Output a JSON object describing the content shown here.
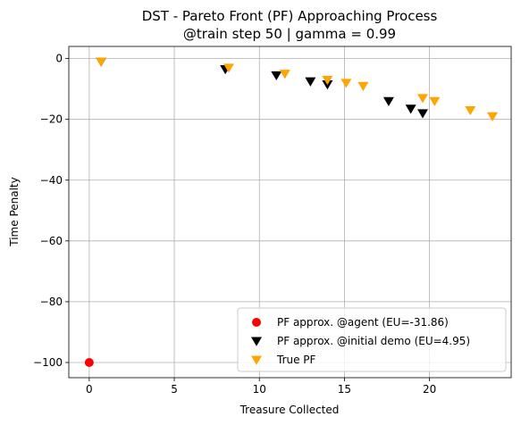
{
  "chart_data": {
    "type": "scatter",
    "title_line1": "DST - Pareto Front (PF) Approaching Process",
    "title_line2": "@train step 50 | gamma = 0.99",
    "xlabel": "Treasure Collected",
    "ylabel": "Time Penalty",
    "xlim": [
      -1.2,
      24.8
    ],
    "ylim": [
      -105,
      4
    ],
    "xticks": [
      0,
      5,
      10,
      15,
      20
    ],
    "yticks": [
      0,
      -20,
      -40,
      -60,
      -80,
      -100
    ],
    "xtick_labels": [
      "0",
      "5",
      "10",
      "15",
      "20"
    ],
    "ytick_labels": [
      "0",
      "−20",
      "−40",
      "−60",
      "−80",
      "−100"
    ],
    "grid": true,
    "legend_position": "lower-right",
    "series": [
      {
        "name": "PF approx. @agent (EU=-31.86)",
        "marker": "circle",
        "color": "#ff0000",
        "points": [
          [
            0,
            -100
          ]
        ]
      },
      {
        "name": "PF approx. @initial demo (EU=4.95)",
        "marker": "triangle-down",
        "color": "#000000",
        "points": [
          [
            0.7,
            -1
          ],
          [
            8,
            -3.5
          ],
          [
            11,
            -5.5
          ],
          [
            13,
            -7.5
          ],
          [
            14,
            -8.5
          ],
          [
            17.6,
            -14
          ],
          [
            18.9,
            -16.5
          ],
          [
            19.6,
            -18
          ]
        ]
      },
      {
        "name": "True PF",
        "marker": "triangle-down",
        "color": "#ffa500",
        "points": [
          [
            0.7,
            -1
          ],
          [
            8.2,
            -3
          ],
          [
            11.5,
            -5
          ],
          [
            14,
            -7
          ],
          [
            15.1,
            -8
          ],
          [
            16.1,
            -9
          ],
          [
            19.6,
            -13
          ],
          [
            20.3,
            -14
          ],
          [
            22.4,
            -17
          ],
          [
            23.7,
            -19
          ]
        ]
      }
    ]
  }
}
